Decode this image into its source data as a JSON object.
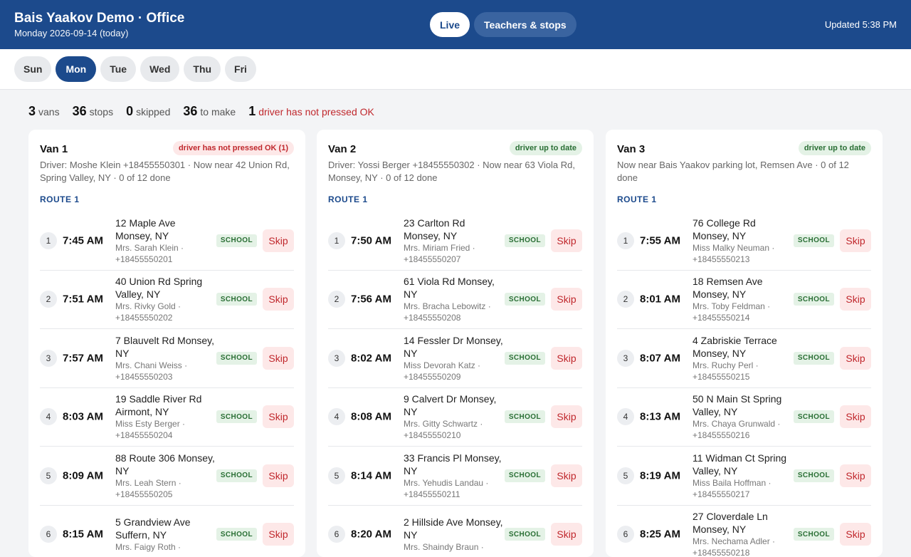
{
  "app": {
    "title": "Bais Yaakov Demo · Office",
    "date_line": "Monday 2026-09-14 (today)",
    "updated": "Updated 5:38 PM"
  },
  "nav_tabs": [
    {
      "label": "Live",
      "active": true
    },
    {
      "label": "Teachers & stops",
      "active": false
    }
  ],
  "days": [
    {
      "label": "Sun"
    },
    {
      "label": "Mon",
      "active": true
    },
    {
      "label": "Tue"
    },
    {
      "label": "Wed"
    },
    {
      "label": "Thu"
    },
    {
      "label": "Fri"
    }
  ],
  "summary": {
    "vans": "3",
    "vans_label": "vans",
    "stops": "36",
    "stops_label": "stops",
    "skipped": "0",
    "skipped_label": "skipped",
    "to_make": "36",
    "to_make_label": "to make",
    "not_ok": "1",
    "not_ok_label": "driver has not pressed OK"
  },
  "colors": {
    "brand": "#1c4a8c",
    "danger": "#c0282d",
    "success": "#2a6f35"
  },
  "vans": [
    {
      "name": "Van 1",
      "badge": "driver has not pressed OK (1)",
      "badge_type": "bad",
      "driver": "Driver: Moshe Klein +18455550301 · Now near 42 Union Rd, Spring Valley, NY · 0 of 12 done",
      "route": "ROUTE 1",
      "stops": [
        {
          "n": "1",
          "time": "7:45 AM",
          "addr": "12 Maple Ave Monsey, NY",
          "contact": "Mrs. Sarah Klein · +18455550201",
          "tag": "SCHOOL",
          "skip": "Skip"
        },
        {
          "n": "2",
          "time": "7:51 AM",
          "addr": "40 Union Rd Spring Valley, NY",
          "contact": "Mrs. Rivky Gold · +18455550202",
          "tag": "SCHOOL",
          "skip": "Skip"
        },
        {
          "n": "3",
          "time": "7:57 AM",
          "addr": "7 Blauvelt Rd Monsey, NY",
          "contact": "Mrs. Chani Weiss · +18455550203",
          "tag": "SCHOOL",
          "skip": "Skip"
        },
        {
          "n": "4",
          "time": "8:03 AM",
          "addr": "19 Saddle River Rd Airmont, NY",
          "contact": "Miss Esty Berger · +18455550204",
          "tag": "SCHOOL",
          "skip": "Skip"
        },
        {
          "n": "5",
          "time": "8:09 AM",
          "addr": "88 Route 306 Monsey, NY",
          "contact": "Mrs. Leah Stern · +18455550205",
          "tag": "SCHOOL",
          "skip": "Skip"
        },
        {
          "n": "6",
          "time": "8:15 AM",
          "addr": "5 Grandview Ave Suffern, NY",
          "contact": "Mrs. Faigy Roth ·",
          "tag": "SCHOOL",
          "skip": "Skip"
        }
      ]
    },
    {
      "name": "Van 2",
      "badge": "driver up to date",
      "badge_type": "ok",
      "driver": "Driver: Yossi Berger +18455550302 · Now near 63 Viola Rd, Monsey, NY · 0 of 12 done",
      "route": "ROUTE 1",
      "stops": [
        {
          "n": "1",
          "time": "7:50 AM",
          "addr": "23 Carlton Rd Monsey, NY",
          "contact": "Mrs. Miriam Fried · +18455550207",
          "tag": "SCHOOL",
          "skip": "Skip"
        },
        {
          "n": "2",
          "time": "7:56 AM",
          "addr": "61 Viola Rd Monsey, NY",
          "contact": "Mrs. Bracha Lebowitz · +18455550208",
          "tag": "SCHOOL",
          "skip": "Skip"
        },
        {
          "n": "3",
          "time": "8:02 AM",
          "addr": "14 Fessler Dr Monsey, NY",
          "contact": "Miss Devorah Katz · +18455550209",
          "tag": "SCHOOL",
          "skip": "Skip"
        },
        {
          "n": "4",
          "time": "8:08 AM",
          "addr": "9 Calvert Dr Monsey, NY",
          "contact": "Mrs. Gitty Schwartz · +18455550210",
          "tag": "SCHOOL",
          "skip": "Skip"
        },
        {
          "n": "5",
          "time": "8:14 AM",
          "addr": "33 Francis Pl Monsey, NY",
          "contact": "Mrs. Yehudis Landau · +18455550211",
          "tag": "SCHOOL",
          "skip": "Skip"
        },
        {
          "n": "6",
          "time": "8:20 AM",
          "addr": "2 Hillside Ave Monsey, NY",
          "contact": "Mrs. Shaindy Braun ·",
          "tag": "SCHOOL",
          "skip": "Skip"
        }
      ]
    },
    {
      "name": "Van 3",
      "badge": "driver up to date",
      "badge_type": "ok",
      "driver": "Now near Bais Yaakov parking lot, Remsen Ave · 0 of 12 done",
      "route": "ROUTE 1",
      "stops": [
        {
          "n": "1",
          "time": "7:55 AM",
          "addr": "76 College Rd Monsey, NY",
          "contact": "Miss Malky Neuman · +18455550213",
          "tag": "SCHOOL",
          "skip": "Skip"
        },
        {
          "n": "2",
          "time": "8:01 AM",
          "addr": "18 Remsen Ave Monsey, NY",
          "contact": "Mrs. Toby Feldman · +18455550214",
          "tag": "SCHOOL",
          "skip": "Skip"
        },
        {
          "n": "3",
          "time": "8:07 AM",
          "addr": "4 Zabriskie Terrace Monsey, NY",
          "contact": "Mrs. Ruchy Perl · +18455550215",
          "tag": "SCHOOL",
          "skip": "Skip"
        },
        {
          "n": "4",
          "time": "8:13 AM",
          "addr": "50 N Main St Spring Valley, NY",
          "contact": "Mrs. Chaya Grunwald · +18455550216",
          "tag": "SCHOOL",
          "skip": "Skip"
        },
        {
          "n": "5",
          "time": "8:19 AM",
          "addr": "11 Widman Ct Spring Valley, NY",
          "contact": "Miss Baila Hoffman · +18455550217",
          "tag": "SCHOOL",
          "skip": "Skip"
        },
        {
          "n": "6",
          "time": "8:25 AM",
          "addr": "27 Cloverdale Ln Monsey, NY",
          "contact": "Mrs. Nechama Adler · +18455550218",
          "tag": "SCHOOL",
          "skip": "Skip"
        }
      ]
    }
  ]
}
